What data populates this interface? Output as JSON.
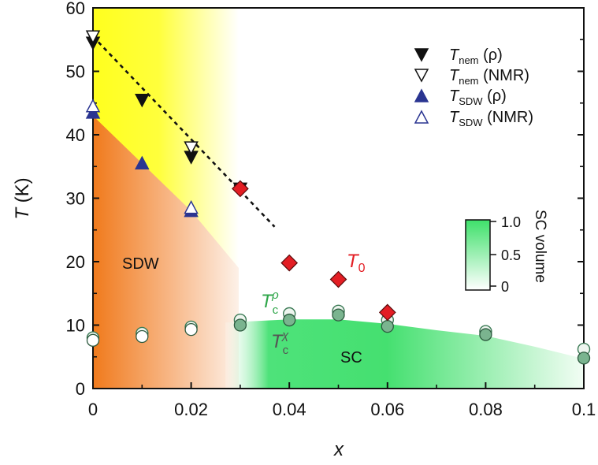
{
  "chart_data": {
    "type": "scatter",
    "title": "",
    "xlabel": "x",
    "ylabel": "T (K)",
    "xlim": [
      0,
      0.1
    ],
    "ylim": [
      0,
      60
    ],
    "x_ticks": [
      "0",
      "0.02",
      "0.04",
      "0.06",
      "0.08",
      "0.1"
    ],
    "y_ticks": [
      "0",
      "10",
      "20",
      "30",
      "40",
      "50",
      "60"
    ],
    "grid": false,
    "legend_position": "top-right",
    "series": [
      {
        "name": "T_nem (ρ)",
        "marker": "triangle-down-filled",
        "color": "#111111",
        "points": [
          [
            0,
            54.5
          ],
          [
            0.01,
            45.5
          ],
          [
            0.02,
            36.5
          ],
          [
            0.03,
            31.5
          ]
        ]
      },
      {
        "name": "T_nem (NMR)",
        "marker": "triangle-down-open",
        "color": "#111111",
        "points": [
          [
            0,
            55.5
          ],
          [
            0.02,
            38
          ]
        ]
      },
      {
        "name": "T_SDW (ρ)",
        "marker": "triangle-up-filled",
        "color": "#2a3591",
        "points": [
          [
            0,
            43.5
          ],
          [
            0.01,
            35.5
          ],
          [
            0.02,
            28
          ]
        ]
      },
      {
        "name": "T_SDW (NMR)",
        "marker": "triangle-up-open",
        "color": "#2a3591",
        "points": [
          [
            0,
            44.5
          ],
          [
            0.02,
            28.5
          ]
        ]
      },
      {
        "name": "T_0",
        "marker": "diamond",
        "color": "#e31e24",
        "points": [
          [
            0.03,
            31.5
          ],
          [
            0.04,
            19.8
          ],
          [
            0.05,
            17.2
          ],
          [
            0.06,
            12
          ]
        ]
      },
      {
        "name": "T_c^ρ",
        "marker": "circle-open",
        "color": "#3b7a55",
        "points": [
          [
            0,
            8
          ],
          [
            0.01,
            8.7
          ],
          [
            0.02,
            9.7
          ],
          [
            0.03,
            10.8
          ],
          [
            0.04,
            11.8
          ],
          [
            0.05,
            12.2
          ],
          [
            0.06,
            10.8
          ],
          [
            0.08,
            9
          ],
          [
            0.1,
            6.2
          ]
        ]
      },
      {
        "name": "T_c^χ",
        "marker": "circle-filled",
        "color": "#3b7a55",
        "points": [
          [
            0,
            7.6
          ],
          [
            0.01,
            8.2
          ],
          [
            0.02,
            9.3
          ],
          [
            0.03,
            10
          ],
          [
            0.04,
            10.8
          ],
          [
            0.05,
            11.6
          ],
          [
            0.06,
            9.8
          ],
          [
            0.08,
            8.5
          ],
          [
            0.1,
            4.8
          ]
        ]
      }
    ],
    "dashed_line": {
      "points": [
        [
          0,
          55.5
        ],
        [
          0.037,
          25.5
        ]
      ]
    },
    "sc_dome_boundary": [
      [
        0.027,
        10.4
      ],
      [
        0.04,
        10.9
      ],
      [
        0.05,
        10.9
      ],
      [
        0.06,
        10.2
      ],
      [
        0.07,
        9.2
      ],
      [
        0.08,
        8.3
      ],
      [
        0.09,
        6.6
      ],
      [
        0.1,
        4.7
      ]
    ],
    "region_labels": {
      "sdw": "SDW",
      "sc": "SC",
      "t0": "T",
      "t0_sub": "0",
      "tc_rho": "T",
      "tc_rho_sub": "c",
      "tc_rho_sup": "ρ",
      "tc_chi": "T",
      "tc_chi_sub": "c",
      "tc_chi_sup": "χ"
    },
    "legend": [
      {
        "main": "T",
        "sub": "nem",
        "rest": " (ρ)"
      },
      {
        "main": "T",
        "sub": "nem",
        "rest": " (NMR)"
      },
      {
        "main": "T",
        "sub": "SDW",
        "rest": " (ρ)"
      },
      {
        "main": "T",
        "sub": "SDW",
        "rest": " (NMR)"
      }
    ],
    "colorbar": {
      "label": "SC volume",
      "ticks": [
        "1.0",
        "0.5",
        "0"
      ],
      "tick_values": [
        1.0,
        0.5,
        0
      ],
      "color_low": "#ffffff",
      "color_high": "#3ee06a"
    },
    "colors": {
      "sdw_orange": "#f07a1c",
      "nematic_yellow": "#ffff1e",
      "sc_green": "#3ee06a",
      "t0_red": "#e31e24",
      "tc_rho_label": "#2fa64a",
      "tc_chi_label": "#555555"
    }
  }
}
